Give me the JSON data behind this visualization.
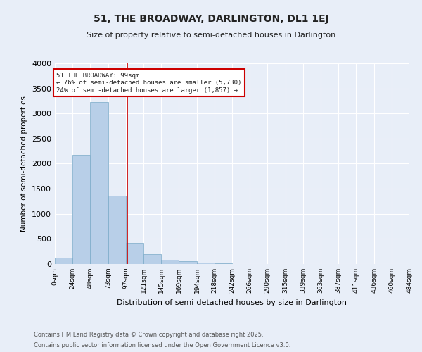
{
  "title": "51, THE BROADWAY, DARLINGTON, DL1 1EJ",
  "subtitle": "Size of property relative to semi-detached houses in Darlington",
  "xlabel": "Distribution of semi-detached houses by size in Darlington",
  "ylabel": "Number of semi-detached properties",
  "bins": [
    0,
    24,
    48,
    73,
    97,
    121,
    145,
    169,
    194,
    218,
    242,
    266,
    290,
    315,
    339,
    363,
    387,
    411,
    436,
    460,
    484
  ],
  "bin_labels": [
    "0sqm",
    "24sqm",
    "48sqm",
    "73sqm",
    "97sqm",
    "121sqm",
    "145sqm",
    "169sqm",
    "194sqm",
    "218sqm",
    "242sqm",
    "266sqm",
    "290sqm",
    "315sqm",
    "339sqm",
    "363sqm",
    "387sqm",
    "411sqm",
    "436sqm",
    "460sqm",
    "484sqm"
  ],
  "counts": [
    130,
    2170,
    3230,
    1360,
    415,
    190,
    80,
    50,
    30,
    10,
    5,
    3,
    2,
    1,
    0,
    0,
    0,
    0,
    0,
    0
  ],
  "bar_color": "#b8cfe8",
  "bar_edge_color": "#7aaac8",
  "property_size": 99,
  "property_line_color": "#cc0000",
  "annotation_box_color": "#cc0000",
  "annotation_text": "51 THE BROADWAY: 99sqm\n← 76% of semi-detached houses are smaller (5,730)\n24% of semi-detached houses are larger (1,857) →",
  "ylim": [
    0,
    4000
  ],
  "yticks": [
    0,
    500,
    1000,
    1500,
    2000,
    2500,
    3000,
    3500,
    4000
  ],
  "footer_line1": "Contains HM Land Registry data © Crown copyright and database right 2025.",
  "footer_line2": "Contains public sector information licensed under the Open Government Licence v3.0.",
  "background_color": "#e8eef8",
  "grid_color": "#ffffff",
  "font_color": "#222222"
}
